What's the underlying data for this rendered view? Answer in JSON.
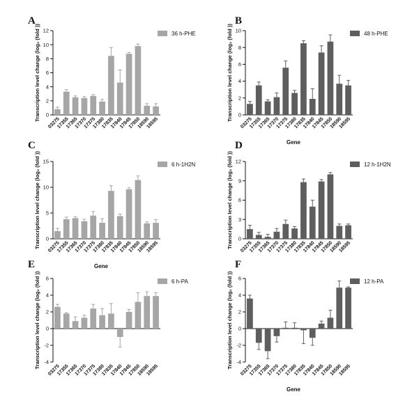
{
  "chart_data": [
    {
      "type": "bar",
      "panel": "A",
      "legend": "36 h-PHE",
      "color": "#a6a6a6",
      "ylabel": "Transcription level change (log₂ (fold ))",
      "xlabel": "",
      "ylim": [
        0,
        12
      ],
      "yticks": [
        "0",
        "2",
        "4",
        "6",
        "8",
        "10",
        "12"
      ],
      "categories": [
        "03275",
        "17355",
        "17365",
        "17370",
        "17375",
        "17380",
        "17835",
        "17840",
        "17845",
        "17850",
        "18590",
        "18595"
      ],
      "values": [
        0.8,
        3.3,
        2.5,
        2.4,
        2.7,
        1.9,
        8.4,
        4.6,
        8.7,
        9.8,
        1.3,
        1.2
      ],
      "errors": [
        0.3,
        0.3,
        0.2,
        0.2,
        0.2,
        0.3,
        1.2,
        1.8,
        0.2,
        0.3,
        0.3,
        0.4
      ]
    },
    {
      "type": "bar",
      "panel": "B",
      "legend": "48 h-PHE",
      "color": "#5e5e5e",
      "ylabel": "Transcription level change (log₂ (fold ))",
      "xlabel": "Gene",
      "ylim": [
        0,
        10
      ],
      "yticks": [
        "0",
        "2",
        "4",
        "6",
        "8",
        "10"
      ],
      "categories": [
        "03275",
        "17355",
        "17365",
        "17370",
        "17375",
        "17380",
        "17835",
        "17840",
        "17845",
        "17850",
        "18590",
        "18595"
      ],
      "values": [
        1.3,
        3.5,
        1.6,
        2.1,
        5.6,
        2.6,
        8.5,
        1.9,
        7.4,
        8.7,
        3.7,
        3.5
      ],
      "errors": [
        0.3,
        0.4,
        0.2,
        0.5,
        0.8,
        0.3,
        0.3,
        1.2,
        0.8,
        0.8,
        1.0,
        0.6
      ]
    },
    {
      "type": "bar",
      "panel": "C",
      "legend": "6 h-1H2N",
      "color": "#a6a6a6",
      "ylabel": "Transcription level change (log₂ (fold ))",
      "xlabel": "Gene",
      "ylim": [
        0,
        15
      ],
      "yticks": [
        "0",
        "5",
        "10",
        "15"
      ],
      "categories": [
        "03275",
        "17355",
        "17365",
        "17370",
        "17375",
        "17380",
        "17835",
        "17840",
        "17845",
        "17850",
        "18590",
        "18595"
      ],
      "values": [
        1.5,
        3.8,
        4.0,
        3.4,
        4.5,
        3.1,
        9.3,
        4.4,
        9.6,
        11.4,
        3.0,
        3.1
      ],
      "errors": [
        0.5,
        0.4,
        0.3,
        0.4,
        0.8,
        0.8,
        1.0,
        0.4,
        0.3,
        0.8,
        0.3,
        0.6
      ]
    },
    {
      "type": "bar",
      "panel": "D",
      "legend": "12 h-1H2N",
      "color": "#5e5e5e",
      "ylabel": "Transcription level change (log₂ (fold ))",
      "xlabel": "",
      "ylim": [
        0,
        12
      ],
      "yticks": [
        "0",
        "3",
        "6",
        "9",
        "12"
      ],
      "categories": [
        "03275",
        "17355",
        "17365",
        "17370",
        "17375",
        "17380",
        "17835",
        "17840",
        "17845",
        "17850",
        "18590",
        "18595"
      ],
      "values": [
        1.5,
        0.6,
        0.3,
        1.1,
        2.3,
        1.6,
        8.8,
        5.0,
        8.9,
        10.0,
        2.0,
        2.1
      ],
      "errors": [
        0.6,
        0.4,
        0.4,
        0.5,
        0.6,
        0.3,
        0.5,
        1.0,
        0.3,
        0.3,
        0.3,
        0.2
      ]
    },
    {
      "type": "bar",
      "panel": "E",
      "legend": "6 h-PA",
      "color": "#a6a6a6",
      "ylabel": "Transcription level change (log₂ (fold ))",
      "xlabel": "",
      "ylim": [
        -4,
        6
      ],
      "yticks": [
        "-4",
        "-2",
        "0",
        "2",
        "4",
        "6"
      ],
      "categories": [
        "03275",
        "17355",
        "17365",
        "17370",
        "17375",
        "17380",
        "17835",
        "17840",
        "17845",
        "17850",
        "18590",
        "18595"
      ],
      "values": [
        2.6,
        1.8,
        0.9,
        1.3,
        2.4,
        1.6,
        1.8,
        -1.0,
        2.0,
        3.2,
        3.9,
        3.9
      ],
      "errors": [
        0.3,
        0.1,
        0.5,
        0.3,
        0.5,
        0.8,
        1.2,
        1.2,
        0.3,
        1.1,
        0.5,
        0.4
      ]
    },
    {
      "type": "bar",
      "panel": "F",
      "legend": "12 h-PA",
      "color": "#5e5e5e",
      "ylabel": "Transcription level change (log₂ (fold ))",
      "xlabel": "Gene",
      "ylim": [
        -4,
        6
      ],
      "yticks": [
        "-4",
        "-2",
        "0",
        "2",
        "4",
        "6"
      ],
      "categories": [
        "03275",
        "17355",
        "17365",
        "17370",
        "17375",
        "17380",
        "17835",
        "17840",
        "17845",
        "17850",
        "18590",
        "18595"
      ],
      "values": [
        3.6,
        -1.7,
        -2.7,
        -0.9,
        0.1,
        0.1,
        -0.2,
        -1.1,
        0.6,
        1.3,
        4.9,
        4.9
      ],
      "errors": [
        0.4,
        0.8,
        0.9,
        0.7,
        0.7,
        0.6,
        1.6,
        0.9,
        0.3,
        0.9,
        0.8,
        0.1
      ]
    }
  ]
}
